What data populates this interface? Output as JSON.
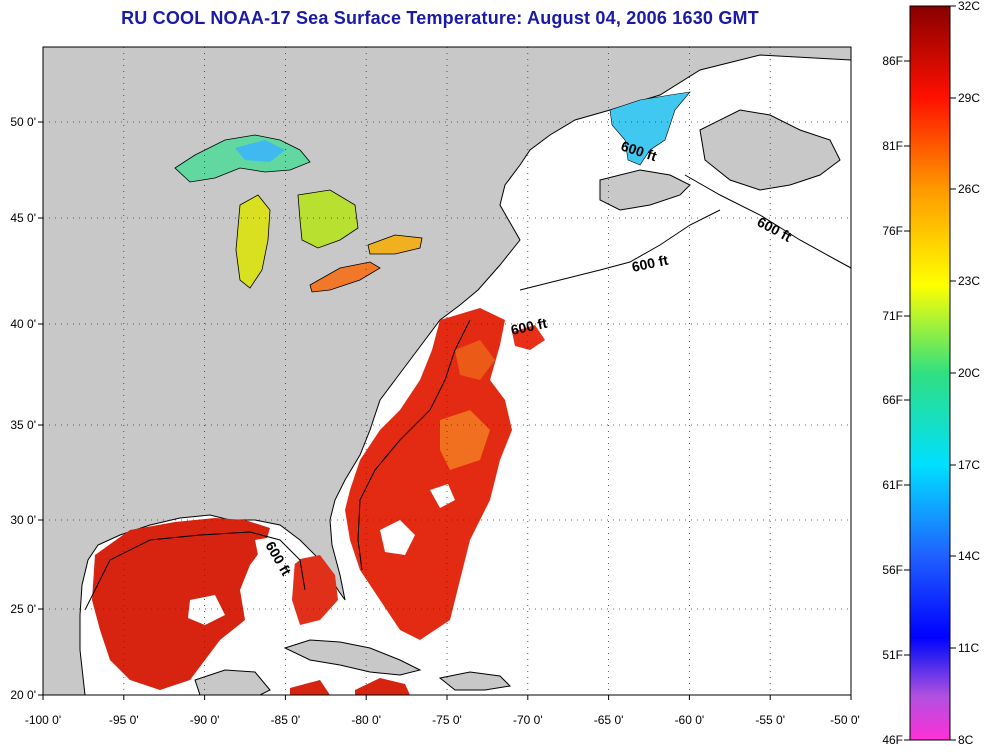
{
  "title": "RU COOL  NOAA-17  Sea Surface Temperature:  August 04, 2006 1630 GMT",
  "x_ticks": [
    "-100 0'",
    "-95 0'",
    "-90 0'",
    "-85 0'",
    "-80 0'",
    "-75 0'",
    "-70 0'",
    "-65 0'",
    "-60 0'",
    "-55 0'",
    "-50 0'"
  ],
  "y_ticks": [
    "50 0'",
    "45 0'",
    "40 0'",
    "35 0'",
    "30 0'",
    "25 0'",
    "20 0'"
  ],
  "contour_labels": [
    "600 ft",
    "600 ft",
    "600 ft",
    "600 ft",
    "600 ft"
  ],
  "colorbar": {
    "celsius": [
      "32C",
      "29C",
      "26C",
      "23C",
      "20C",
      "17C",
      "14C",
      "11C",
      "8C"
    ],
    "fahrenheit": [
      "86F",
      "81F",
      "76F",
      "71F",
      "66F",
      "61F",
      "56F",
      "51F",
      "46F"
    ]
  },
  "colors": {
    "land": "#c8c8c8",
    "ocean_no_data": "#ffffff",
    "title": "#1a1aa8",
    "sst_warm": "#e82a10",
    "sst_cool": "#1fb8e8"
  }
}
